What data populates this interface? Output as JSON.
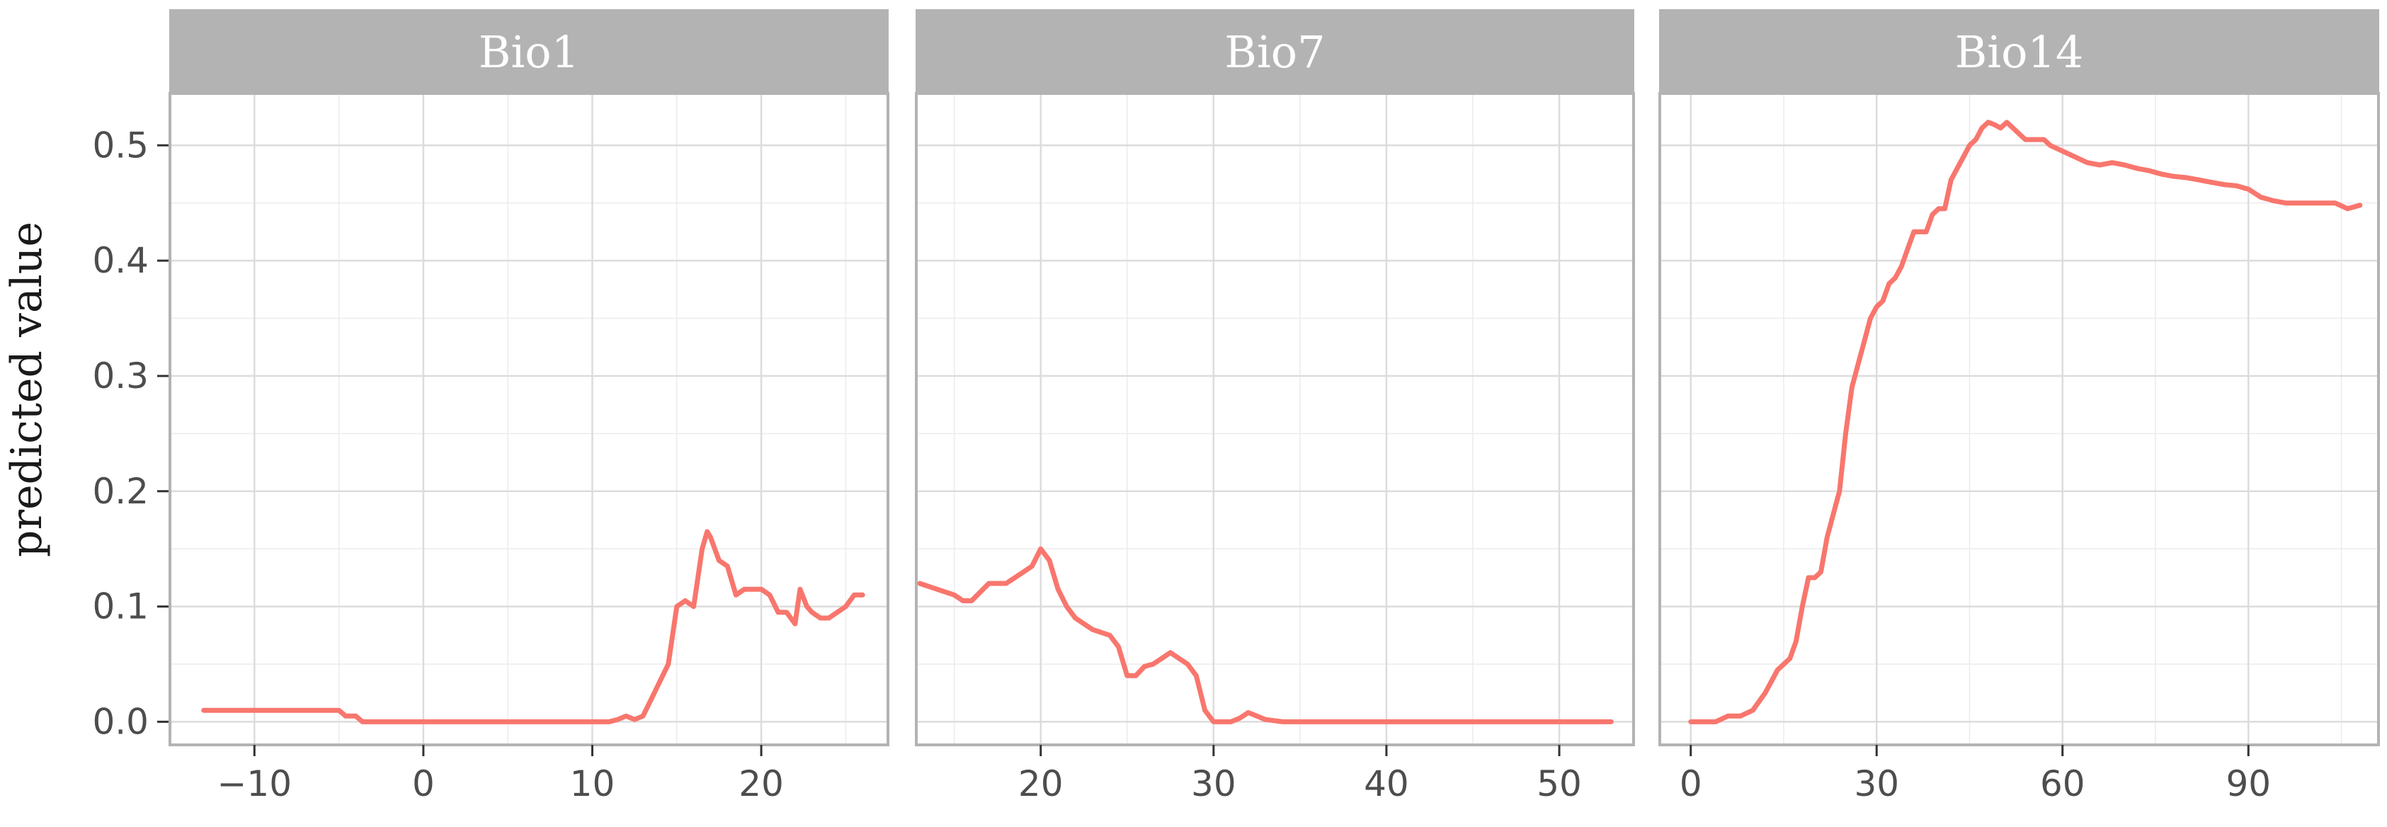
{
  "chart_data": {
    "type": "line",
    "ylabel": "predicted value",
    "ylim": [
      -0.02,
      0.545
    ],
    "yticks": [
      0.0,
      0.1,
      0.2,
      0.3,
      0.4,
      0.5
    ],
    "ytick_labels": [
      "0.0",
      "0.1",
      "0.2",
      "0.3",
      "0.4",
      "0.5"
    ],
    "line_color": "#F8766D",
    "strip_color": "#B3B3B3",
    "grid": true,
    "panels": [
      {
        "title": "Bio1",
        "xlim": [
          -15,
          27.5
        ],
        "xticks": [
          -10,
          0,
          10,
          20
        ],
        "xtick_labels": [
          "−10",
          "0",
          "10",
          "20"
        ],
        "x": [
          -13,
          -12,
          -11,
          -10,
          -9,
          -8,
          -7,
          -6,
          -5,
          -4.6,
          -4,
          -3.6,
          -3,
          -2,
          0,
          2,
          4,
          6,
          8,
          10,
          11,
          11.5,
          12,
          12.5,
          13,
          13.5,
          14,
          14.5,
          15,
          15.5,
          16,
          16.5,
          16.8,
          17,
          17.5,
          18,
          18.5,
          19,
          19.5,
          20,
          20.5,
          21,
          21.5,
          22,
          22.3,
          22.7,
          23,
          23.5,
          24,
          24.5,
          25,
          25.5,
          26
        ],
        "y": [
          0.01,
          0.01,
          0.01,
          0.01,
          0.01,
          0.01,
          0.01,
          0.01,
          0.01,
          0.005,
          0.005,
          0.0,
          0.0,
          0.0,
          0.0,
          0.0,
          0.0,
          0.0,
          0.0,
          0.0,
          0.0,
          0.002,
          0.005,
          0.002,
          0.005,
          0.02,
          0.035,
          0.05,
          0.1,
          0.105,
          0.1,
          0.15,
          0.165,
          0.16,
          0.14,
          0.135,
          0.11,
          0.115,
          0.115,
          0.115,
          0.11,
          0.095,
          0.095,
          0.085,
          0.115,
          0.1,
          0.095,
          0.09,
          0.09,
          0.095,
          0.1,
          0.11,
          0.11
        ]
      },
      {
        "title": "Bio7",
        "xlim": [
          12.8,
          54.3
        ],
        "xticks": [
          20,
          30,
          40,
          50
        ],
        "xtick_labels": [
          "20",
          "30",
          "40",
          "50"
        ],
        "x": [
          13,
          14,
          15,
          15.5,
          16,
          17,
          18,
          18.5,
          19,
          19.5,
          20,
          20.5,
          21,
          21.5,
          22,
          23,
          24,
          24.5,
          25,
          25.5,
          26,
          26.5,
          27,
          27.5,
          28,
          28.5,
          29,
          29.5,
          30,
          31,
          31.5,
          32,
          32.5,
          33,
          34,
          36,
          40,
          45,
          50,
          53
        ],
        "y": [
          0.12,
          0.115,
          0.11,
          0.105,
          0.105,
          0.12,
          0.12,
          0.125,
          0.13,
          0.135,
          0.15,
          0.14,
          0.115,
          0.1,
          0.09,
          0.08,
          0.075,
          0.065,
          0.04,
          0.04,
          0.048,
          0.05,
          0.055,
          0.06,
          0.055,
          0.05,
          0.04,
          0.01,
          0.0,
          0.0,
          0.003,
          0.008,
          0.005,
          0.002,
          0.0,
          0.0,
          0.0,
          0.0,
          0.0,
          0.0
        ]
      },
      {
        "title": "Bio14",
        "xlim": [
          -5,
          111
        ],
        "xticks": [
          0,
          30,
          60,
          90
        ],
        "xtick_labels": [
          "0",
          "30",
          "60",
          "90"
        ],
        "x": [
          0,
          4,
          6,
          8,
          10,
          12,
          14,
          16,
          17,
          18,
          19,
          20,
          21,
          22,
          23,
          24,
          25,
          26,
          27,
          28,
          29,
          30,
          31,
          32,
          33,
          34,
          35,
          36,
          37,
          38,
          39,
          40,
          41,
          42,
          43,
          44,
          45,
          46,
          47,
          48,
          49,
          50,
          51,
          52,
          53,
          54,
          55,
          56,
          57,
          58,
          60,
          62,
          64,
          66,
          68,
          70,
          72,
          74,
          76,
          78,
          80,
          82,
          84,
          86,
          88,
          90,
          92,
          94,
          96,
          98,
          100,
          102,
          104,
          106,
          108
        ],
        "y": [
          0.0,
          0.0,
          0.005,
          0.005,
          0.01,
          0.025,
          0.045,
          0.055,
          0.07,
          0.1,
          0.125,
          0.125,
          0.13,
          0.16,
          0.18,
          0.2,
          0.25,
          0.29,
          0.31,
          0.33,
          0.35,
          0.36,
          0.365,
          0.38,
          0.385,
          0.395,
          0.41,
          0.425,
          0.425,
          0.425,
          0.44,
          0.445,
          0.445,
          0.47,
          0.48,
          0.49,
          0.5,
          0.505,
          0.515,
          0.52,
          0.518,
          0.515,
          0.52,
          0.515,
          0.51,
          0.505,
          0.505,
          0.505,
          0.505,
          0.5,
          0.495,
          0.49,
          0.485,
          0.483,
          0.485,
          0.483,
          0.48,
          0.478,
          0.475,
          0.473,
          0.472,
          0.47,
          0.468,
          0.466,
          0.465,
          0.462,
          0.455,
          0.452,
          0.45,
          0.45,
          0.45,
          0.45,
          0.45,
          0.445,
          0.448
        ]
      }
    ]
  }
}
